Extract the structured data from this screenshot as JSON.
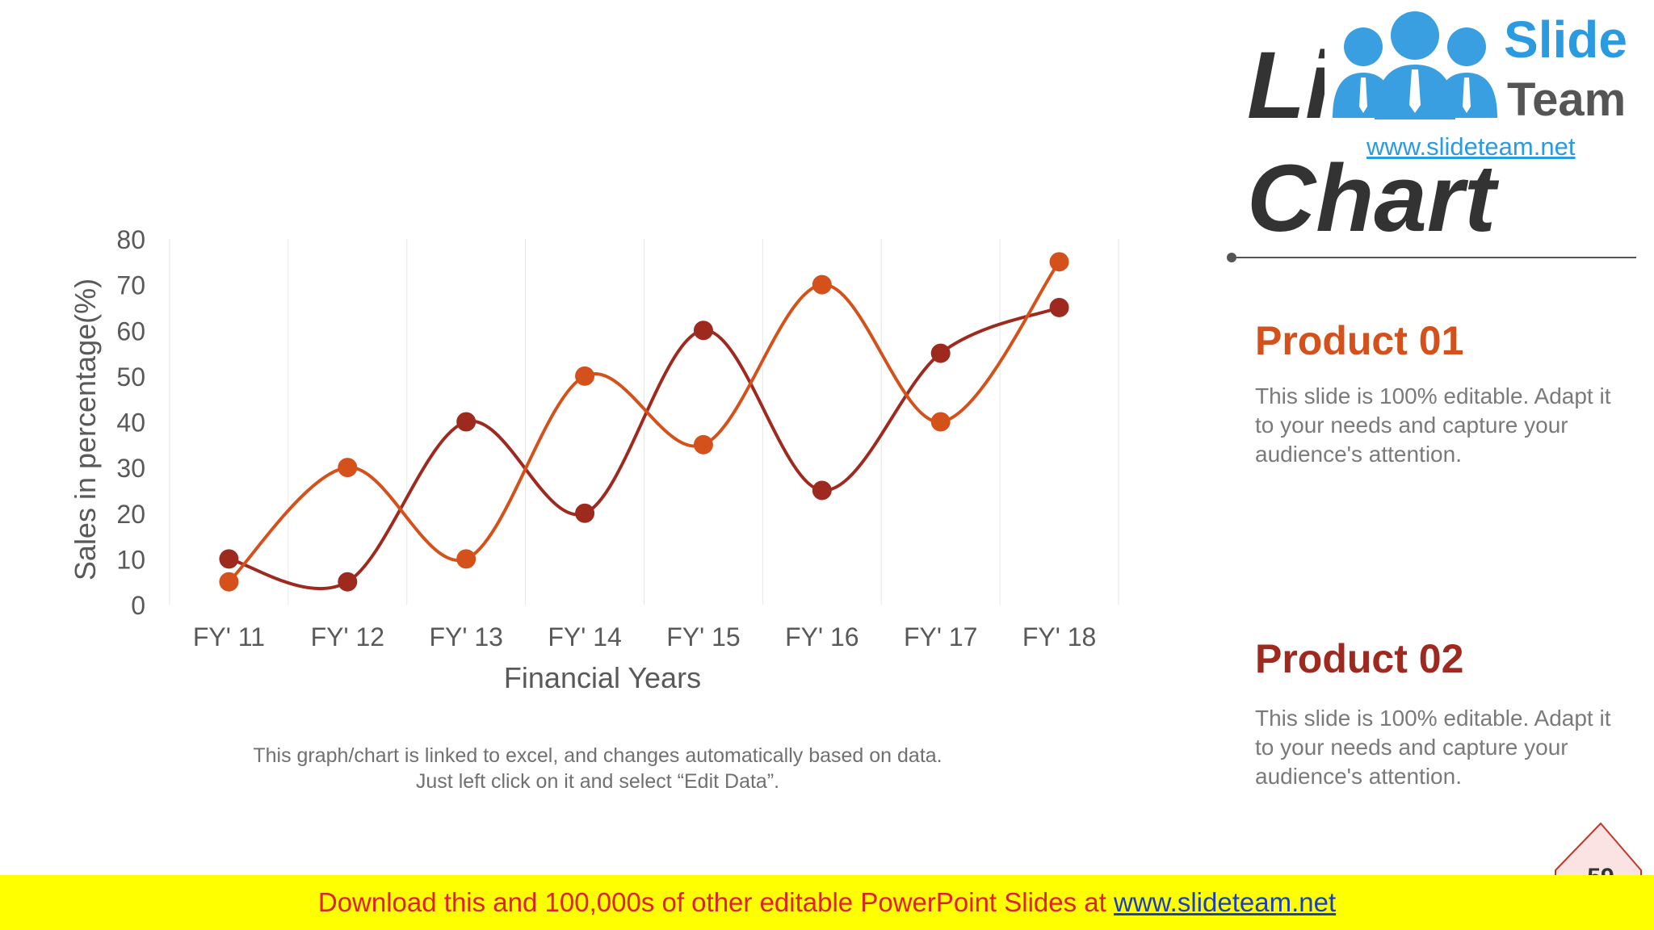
{
  "slide": {
    "title": "Line Chart",
    "caption": "This graph/chart is linked to excel, and changes automatically based on data. Just left click on it and select “Edit Data”.",
    "page_number": "59"
  },
  "products": [
    {
      "heading": "Product 01",
      "color": "#d4511b",
      "text": "This slide is 100% editable. Adapt it to your needs and capture your audience's attention."
    },
    {
      "heading": "Product 02",
      "color": "#9e2a1f",
      "text": "This slide is 100% editable. Adapt it to your needs and capture your audience's attention."
    }
  ],
  "logo": {
    "word1": "Slide",
    "word2": "Team",
    "url": "www.slideteam.net",
    "people_color": "#3a9fe0",
    "tie_color": "#ffffff"
  },
  "banner": {
    "text": "Download this and 100,000s of other editable PowerPoint Slides at ",
    "link": "www.slideteam.net",
    "background": "#ffff00",
    "text_color": "#e0202a",
    "link_color": "#1a3fbf"
  },
  "chart_data": {
    "type": "line",
    "categories": [
      "FY' 11",
      "FY' 12",
      "FY' 13",
      "FY' 14",
      "FY' 15",
      "FY' 16",
      "FY' 17",
      "FY' 18"
    ],
    "series": [
      {
        "color": "#d4511b",
        "values": [
          5,
          30,
          10,
          50,
          35,
          70,
          40,
          75
        ]
      },
      {
        "color": "#9e2a1f",
        "values": [
          10,
          5,
          40,
          20,
          60,
          25,
          55,
          65
        ]
      }
    ],
    "xlabel": "Financial Years",
    "ylabel": "Sales in percentage(%)",
    "ylim": [
      0,
      80
    ],
    "yticks": [
      0,
      10,
      20,
      30,
      40,
      50,
      60,
      70,
      80
    ],
    "smooth": true,
    "gridlines": "vertical",
    "legend": "none",
    "axis_text_color": "#595959",
    "grid_color": "#e6e6e6"
  }
}
